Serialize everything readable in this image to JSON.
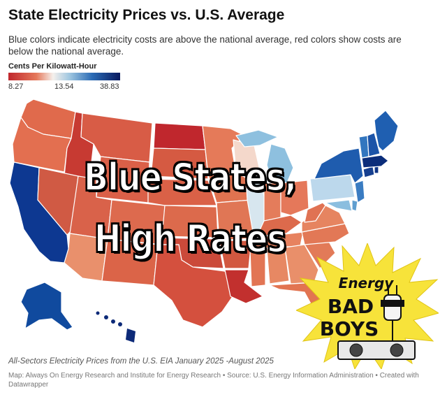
{
  "title": "State Electricity Prices vs. U.S. Average",
  "subtitle": "Blue colors indicate electricity costs are above the national average, red colors show costs are below the national average.",
  "legend": {
    "title": "Cents Per Kilowatt-Hour",
    "min": "8.27",
    "mid": "13.54",
    "max": "38.83"
  },
  "overlay": {
    "line1": "Blue States,",
    "line2": "High Rates"
  },
  "logo": {
    "word1": "Energy",
    "word2": "BAD",
    "word3": "BOYS"
  },
  "caption": "All-Sectors Electricity Prices from the U.S. EIA January 2025 -August 2025",
  "source": "Map: Always On Energy Research and Institute for Energy Research • Source: U.S. Energy Information Administration • Created with Datawrapper",
  "colors": {
    "lowest": "#c0272d",
    "low": "#e5785a",
    "average": "#f5f0ec",
    "slightly_high": "#9ec6e0",
    "high": "#2b6bb5",
    "highest": "#08195e",
    "logo_burst": "#f7e33a"
  }
}
